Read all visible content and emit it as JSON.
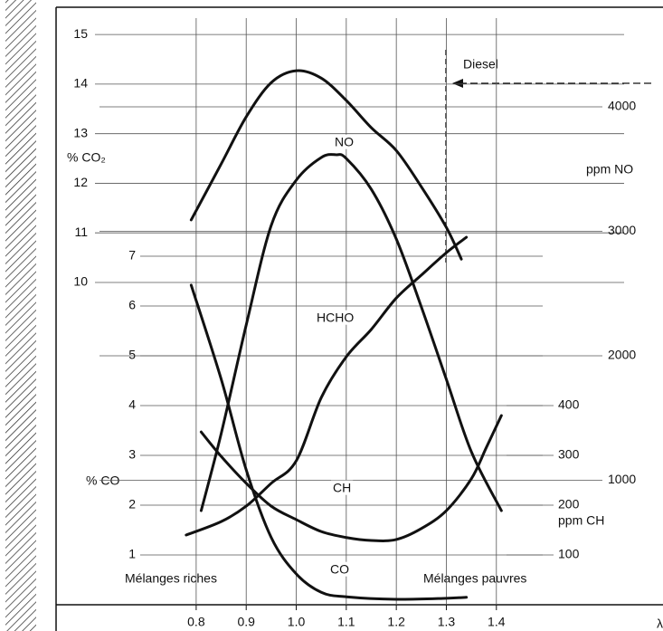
{
  "chart_data": {
    "type": "line",
    "xlim": [
      0.52,
      1.733
    ],
    "xticks": [
      0.8,
      0.9,
      {
        "value": 1,
        "label": "1.0"
      },
      1.1,
      1.2,
      1.3,
      1.4
    ],
    "xlabel": "λ",
    "grid": true,
    "color": "#111111",
    "axes": {
      "y_co2": {
        "label": "% CO₂",
        "lim": [
          3.5,
          15.55
        ],
        "ticks": [
          10,
          11,
          12,
          13,
          14,
          15
        ]
      },
      "y_co": {
        "label": "% CO",
        "lim": [
          0,
          12
        ],
        "ticks": [
          1,
          2,
          3,
          4,
          5,
          6,
          7
        ]
      },
      "y_no": {
        "label": "ppm NO",
        "lim": [
          0,
          4800
        ],
        "ticks": [
          1000,
          2000,
          3000,
          4000
        ]
      },
      "y_ch": {
        "label": "ppm CH",
        "lim": [
          0,
          1200
        ],
        "ticks": [
          100,
          200,
          300,
          400
        ]
      }
    },
    "series": [
      {
        "axis": "y_co2",
        "x": [
          0.79,
          0.85,
          0.9,
          0.95,
          1.0,
          1.05,
          1.1,
          1.15,
          1.2,
          1.25,
          1.3,
          1.33
        ],
        "values": [
          11.26,
          12.39,
          13.34,
          14.03,
          14.27,
          14.12,
          13.67,
          13.12,
          12.66,
          11.93,
          11.11,
          10.47
        ]
      },
      {
        "name": "NO",
        "axis": "y_no",
        "x": [
          0.81,
          0.85,
          0.9,
          0.95,
          1.0,
          1.05,
          1.08,
          1.1,
          1.15,
          1.2,
          1.25,
          1.3,
          1.35,
          1.41
        ],
        "values": [
          756,
          1375,
          2247,
          3047,
          3411,
          3593,
          3615,
          3585,
          3338,
          2938,
          2393,
          1811,
          1229,
          756
        ]
      },
      {
        "name": "HCHO",
        "axis": "y_co",
        "x": [
          0.78,
          0.85,
          0.9,
          0.95,
          1.0,
          1.05,
          1.1,
          1.15,
          1.2,
          1.25,
          1.3,
          1.34
        ],
        "values": [
          1.4,
          1.67,
          1.98,
          2.44,
          2.89,
          4.16,
          4.98,
          5.53,
          6.16,
          6.62,
          7.07,
          7.38
        ]
      },
      {
        "name": "CH",
        "axis": "y_ch",
        "x": [
          0.81,
          0.85,
          0.9,
          0.95,
          1.0,
          1.05,
          1.1,
          1.15,
          1.2,
          1.25,
          1.3,
          1.35,
          1.38,
          1.41
        ],
        "values": [
          347,
          298,
          244,
          198,
          171,
          147,
          135,
          129,
          131,
          153,
          189,
          253,
          316,
          380
        ]
      },
      {
        "name": "CO",
        "axis": "y_co",
        "x": [
          0.79,
          0.85,
          0.9,
          0.95,
          1.0,
          1.05,
          1.1,
          1.2,
          1.3,
          1.34
        ],
        "values": [
          6.42,
          4.53,
          2.71,
          1.35,
          0.62,
          0.25,
          0.16,
          0.11,
          0.13,
          0.15
        ]
      }
    ],
    "annotations": [
      "Diesel",
      "Mélanges riches",
      "Mélanges pauvres"
    ]
  }
}
